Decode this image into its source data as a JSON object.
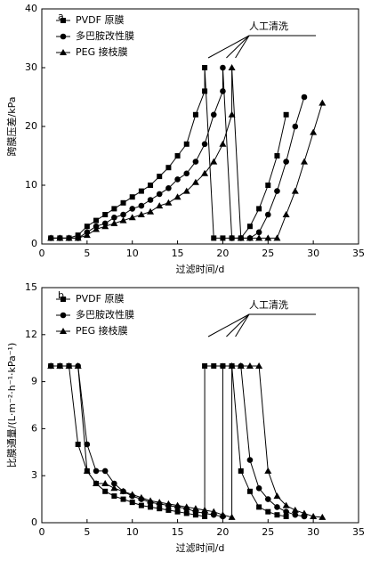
{
  "chart_data": [
    {
      "type": "line",
      "panel_label": "a.",
      "y_label": "跨膜压差/kPa",
      "x_label": "过滤时间/d",
      "annotation": "人工清洗",
      "xlim": [
        0,
        35
      ],
      "xticks": [
        0,
        5,
        10,
        15,
        20,
        25,
        30,
        35
      ],
      "ylim": [
        0,
        40
      ],
      "yticks": [
        0,
        10,
        20,
        30,
        40
      ],
      "legend": "upper left",
      "series": [
        {
          "name": "PVDF 原膜",
          "color": "#000000",
          "marker": "square",
          "x": [
            1,
            2,
            3,
            4,
            5,
            6,
            7,
            8,
            9,
            10,
            11,
            12,
            13,
            14,
            15,
            16,
            17,
            18,
            18,
            19,
            20,
            21,
            22,
            23,
            24,
            25,
            26,
            27
          ],
          "values": [
            1,
            1,
            1,
            1.5,
            3,
            4,
            5,
            6,
            7,
            8,
            9,
            10,
            11.5,
            13,
            15,
            17,
            22,
            26,
            30,
            1,
            1,
            1,
            1,
            3,
            6,
            10,
            15,
            22
          ]
        },
        {
          "name": "多巴胺改性膜",
          "color": "#000000",
          "marker": "circle",
          "x": [
            1,
            2,
            3,
            4,
            5,
            6,
            7,
            8,
            9,
            10,
            11,
            12,
            13,
            14,
            15,
            16,
            17,
            18,
            19,
            20,
            20,
            21,
            22,
            23,
            24,
            25,
            26,
            27,
            28,
            29
          ],
          "values": [
            1,
            1,
            1,
            1,
            2,
            3,
            3.5,
            4.5,
            5,
            6,
            6.5,
            7.5,
            8.5,
            9.5,
            11,
            12,
            14,
            17,
            22,
            26,
            30,
            1,
            1,
            1,
            2,
            5,
            9,
            14,
            20,
            25
          ]
        },
        {
          "name": "PEG 接枝膜",
          "color": "#000000",
          "marker": "triangle",
          "x": [
            1,
            2,
            3,
            4,
            5,
            6,
            7,
            8,
            9,
            10,
            11,
            12,
            13,
            14,
            15,
            16,
            17,
            18,
            19,
            20,
            21,
            21,
            22,
            23,
            24,
            25,
            26,
            27,
            28,
            29,
            30,
            31
          ],
          "values": [
            1,
            1,
            1,
            1,
            1.5,
            2.5,
            3,
            3.5,
            4,
            4.5,
            5,
            5.5,
            6.5,
            7,
            8,
            9,
            10.5,
            12,
            14,
            17,
            22,
            30,
            1,
            1,
            1,
            1,
            1,
            5,
            9,
            14,
            19,
            24
          ]
        }
      ]
    },
    {
      "type": "line",
      "panel_label": "b.",
      "y_label": "比膜通量/(L·m⁻²·h⁻¹·kPa⁻¹)",
      "x_label": "过滤时间/d",
      "annotation": "人工清洗",
      "xlim": [
        0,
        35
      ],
      "xticks": [
        0,
        5,
        10,
        15,
        20,
        25,
        30,
        35
      ],
      "ylim": [
        0,
        15
      ],
      "yticks": [
        0,
        3,
        6,
        9,
        12,
        15
      ],
      "legend": "upper left",
      "series": [
        {
          "name": "PVDF 原膜",
          "color": "#000000",
          "marker": "square",
          "x": [
            1,
            2,
            3,
            4,
            5,
            6,
            7,
            8,
            9,
            10,
            11,
            12,
            13,
            14,
            15,
            16,
            17,
            18,
            18,
            19,
            20,
            21,
            22,
            23,
            24,
            25,
            26,
            27
          ],
          "values": [
            10,
            10,
            10,
            5,
            3.3,
            2.5,
            2,
            1.7,
            1.5,
            1.3,
            1.1,
            1,
            0.9,
            0.8,
            0.7,
            0.6,
            0.5,
            0.4,
            10,
            10,
            10,
            10,
            3.3,
            2,
            1,
            0.7,
            0.5,
            0.4
          ]
        },
        {
          "name": "多巴胺改性膜",
          "color": "#000000",
          "marker": "circle",
          "x": [
            1,
            2,
            3,
            4,
            5,
            6,
            7,
            8,
            9,
            10,
            11,
            12,
            13,
            14,
            15,
            16,
            17,
            18,
            19,
            20,
            20,
            21,
            22,
            23,
            24,
            25,
            26,
            27,
            28,
            29
          ],
          "values": [
            10,
            10,
            10,
            10,
            5,
            3.3,
            3.3,
            2.5,
            2,
            1.7,
            1.5,
            1.3,
            1.2,
            1.1,
            1,
            0.9,
            0.7,
            0.6,
            0.5,
            0.4,
            10,
            10,
            10,
            4,
            2.2,
            1.5,
            1,
            0.7,
            0.5,
            0.4
          ]
        },
        {
          "name": "PEG 接枝膜",
          "color": "#000000",
          "marker": "triangle",
          "x": [
            1,
            2,
            3,
            4,
            5,
            6,
            7,
            8,
            9,
            10,
            11,
            12,
            13,
            14,
            15,
            16,
            17,
            18,
            19,
            20,
            21,
            21,
            22,
            23,
            24,
            25,
            26,
            27,
            28,
            29,
            30,
            31
          ],
          "values": [
            10,
            10,
            10,
            10,
            3.3,
            2.5,
            2.5,
            2.2,
            2,
            1.8,
            1.6,
            1.4,
            1.3,
            1.2,
            1.1,
            1,
            0.9,
            0.8,
            0.7,
            0.5,
            0.35,
            10,
            10,
            10,
            10,
            3.3,
            1.7,
            1.1,
            0.8,
            0.6,
            0.4,
            0.35
          ]
        }
      ]
    }
  ]
}
